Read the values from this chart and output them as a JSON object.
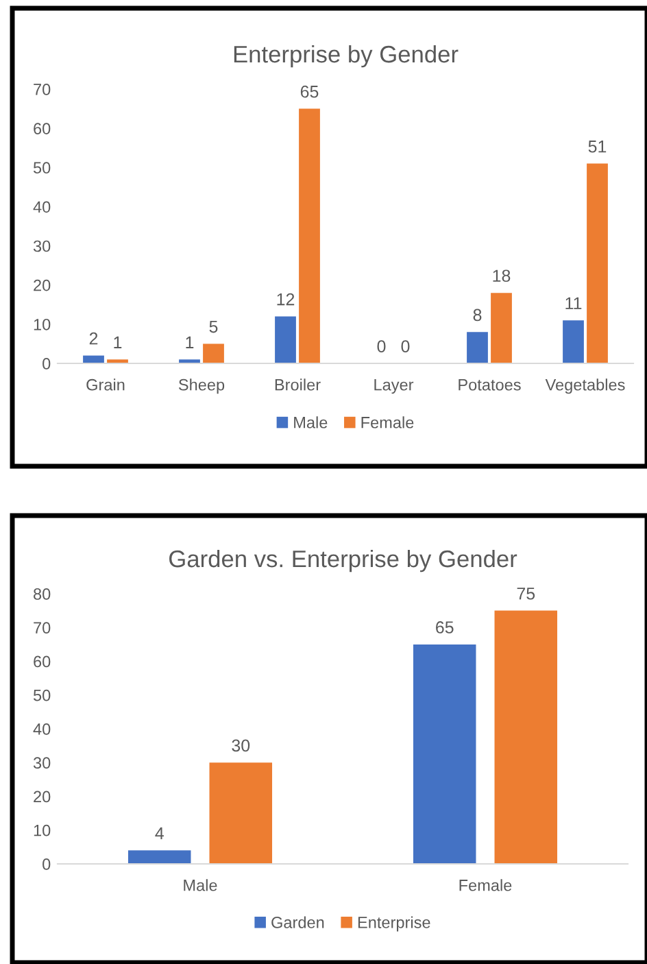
{
  "chart_data": [
    {
      "type": "bar",
      "title": "Enterprise by Gender",
      "categories": [
        "Grain",
        "Sheep",
        "Broiler",
        "Layer",
        "Potatoes",
        "Vegetables"
      ],
      "series": [
        {
          "name": "Male",
          "color": "#4472c4",
          "values": [
            2,
            1,
            12,
            0,
            8,
            11
          ]
        },
        {
          "name": "Female",
          "color": "#ed7d31",
          "values": [
            1,
            5,
            65,
            0,
            18,
            51
          ]
        }
      ],
      "ylim": [
        0,
        70
      ],
      "yticks": [
        0,
        10,
        20,
        30,
        40,
        50,
        60,
        70
      ],
      "grid": false,
      "legend": "bottom",
      "data_labels": true
    },
    {
      "type": "bar",
      "title": "Garden vs. Enterprise by Gender",
      "categories": [
        "Male",
        "Female"
      ],
      "series": [
        {
          "name": "Garden",
          "color": "#4472c4",
          "values": [
            4,
            65
          ]
        },
        {
          "name": "Enterprise",
          "color": "#ed7d31",
          "values": [
            30,
            75
          ]
        }
      ],
      "ylim": [
        0,
        80
      ],
      "yticks": [
        0,
        10,
        20,
        30,
        40,
        50,
        60,
        70,
        80
      ],
      "grid": false,
      "legend": "bottom",
      "data_labels": true
    }
  ]
}
